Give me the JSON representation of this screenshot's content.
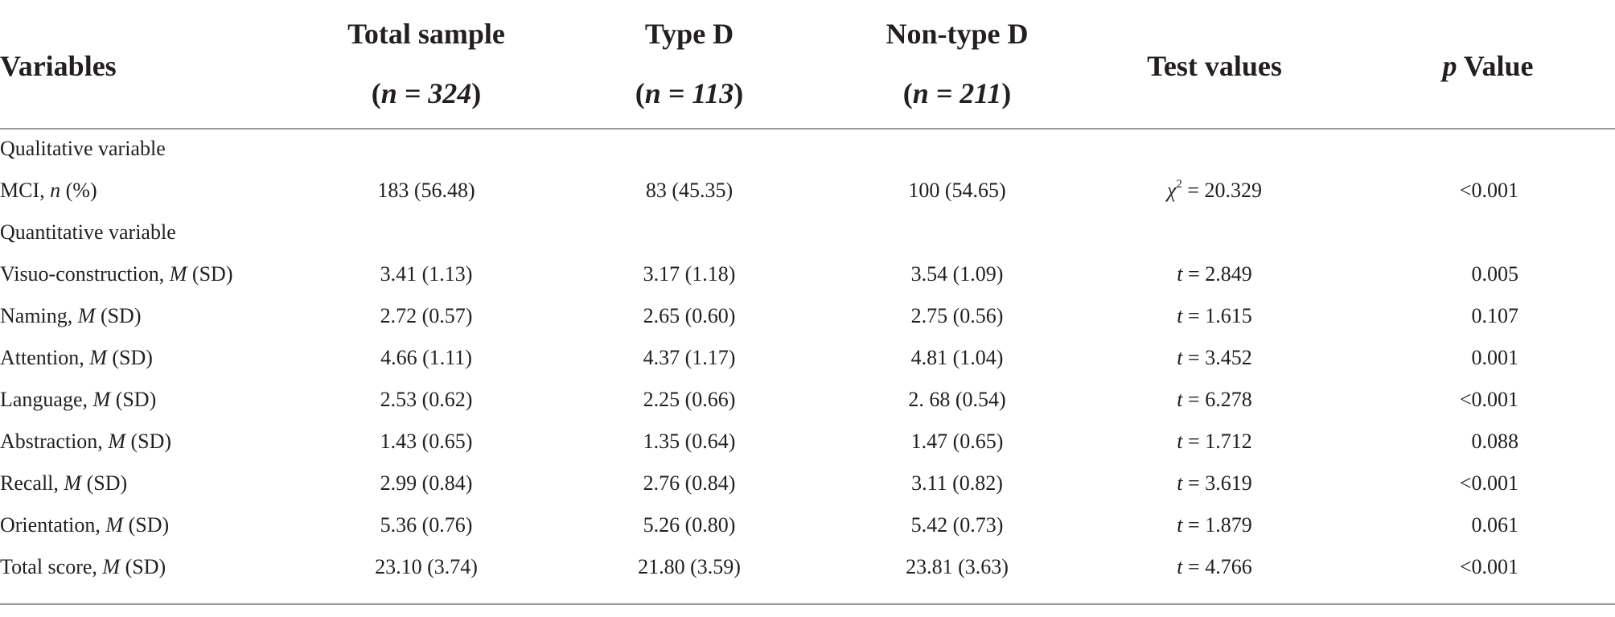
{
  "header": {
    "variables": "Variables",
    "total_label": "Total sample",
    "total_n": "n = 324",
    "typed_label": "Type D",
    "typed_n": "n = 113",
    "nontyped_label": "Non-type D",
    "nontyped_n": "n = 211",
    "test_label": "Test values",
    "p_label_italic": "p",
    "p_label_rest": " Value"
  },
  "sections": {
    "qualitative": "Qualitative variable",
    "quantitative": "Quantitative variable"
  },
  "mci_row": {
    "name": "MCI, ",
    "stat_italic": "n",
    "stat_rest": " (%)",
    "total": "183 (56.48)",
    "typed": "83 (45.35)",
    "nontyped": "100 (54.65)",
    "test_symbol": "χ",
    "test_sup": "2",
    "test_value": " = 20.329",
    "p": "<0.001"
  },
  "rows": [
    {
      "name": "Visuo-construction, ",
      "stat": "M",
      "rest": " (SD)",
      "total": "3.41 (1.13)",
      "typed": "3.17 (1.18)",
      "nontyped": "3.54 (1.09)",
      "t": "t",
      "tval": " = 2.849",
      "p": "0.005"
    },
    {
      "name": "Naming, ",
      "stat": "M",
      "rest": " (SD)",
      "total": "2.72 (0.57)",
      "typed": "2.65 (0.60)",
      "nontyped": "2.75 (0.56)",
      "t": "t",
      "tval": " = 1.615",
      "p": "0.107"
    },
    {
      "name": "Attention, ",
      "stat": "M",
      "rest": " (SD)",
      "total": "4.66 (1.11)",
      "typed": "4.37 (1.17)",
      "nontyped": "4.81 (1.04)",
      "t": "t",
      "tval": " = 3.452",
      "p": "0.001"
    },
    {
      "name": "Language, ",
      "stat": "M",
      "rest": " (SD)",
      "total": "2.53 (0.62)",
      "typed": "2.25 (0.66)",
      "nontyped": "2. 68 (0.54)",
      "t": "t",
      "tval": " = 6.278",
      "p": "<0.001"
    },
    {
      "name": "Abstraction, ",
      "stat": "M",
      "rest": " (SD)",
      "total": "1.43 (0.65)",
      "typed": "1.35 (0.64)",
      "nontyped": "1.47 (0.65)",
      "t": "t",
      "tval": " = 1.712",
      "p": "0.088"
    },
    {
      "name": "Recall, ",
      "stat": "M",
      "rest": " (SD)",
      "total": "2.99 (0.84)",
      "typed": "2.76 (0.84)",
      "nontyped": "3.11 (0.82)",
      "t": "t",
      "tval": " = 3.619",
      "p": "<0.001"
    },
    {
      "name": "Orientation, ",
      "stat": "M",
      "rest": " (SD)",
      "total": "5.36 (0.76)",
      "typed": "5.26 (0.80)",
      "nontyped": "5.42 (0.73)",
      "t": "t",
      "tval": " = 1.879",
      "p": "0.061"
    },
    {
      "name": "Total score, ",
      "stat": "M",
      "rest": " (SD)",
      "total": "23.10 (3.74)",
      "typed": "21.80 (3.59)",
      "nontyped": "23.81 (3.63)",
      "t": "t",
      "tval": " = 4.766",
      "p": "<0.001"
    }
  ]
}
